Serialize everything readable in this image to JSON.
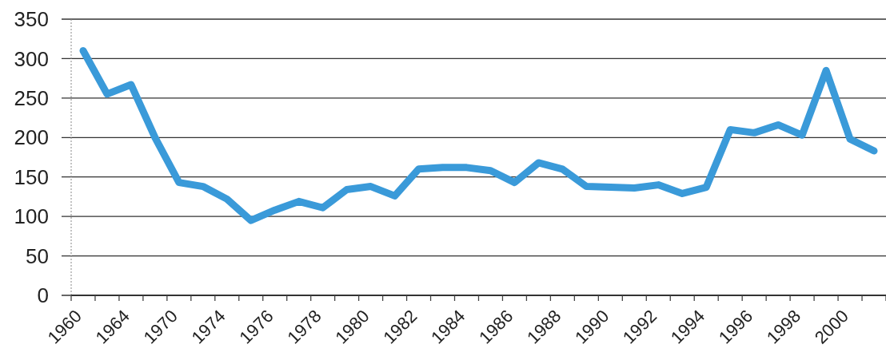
{
  "chart_data": {
    "type": "line",
    "categories": [
      "1960",
      null,
      "1964",
      null,
      "1970",
      null,
      "1974",
      null,
      "1976",
      null,
      "1978",
      null,
      "1980",
      null,
      "1982",
      null,
      "1984",
      null,
      "1986",
      null,
      "1988",
      null,
      "1990",
      null,
      "1992",
      null,
      "1994",
      null,
      "1996",
      null,
      "1998",
      null,
      "2000",
      null
    ],
    "series": [
      {
        "color": "#3a9ad9",
        "values": [
          310,
          255,
          267,
          200,
          143,
          138,
          122,
          95,
          108,
          119,
          111,
          134,
          138,
          126,
          160,
          162,
          162,
          158,
          143,
          168,
          160,
          138,
          137,
          136,
          140,
          129,
          137,
          210,
          206,
          216,
          203,
          285,
          198,
          183
        ]
      }
    ],
    "ylim": [
      0,
      350
    ],
    "yticks": [
      0,
      50,
      100,
      150,
      200,
      250,
      300,
      350
    ],
    "grid": "y",
    "marker": "none",
    "line_style": "solid"
  }
}
